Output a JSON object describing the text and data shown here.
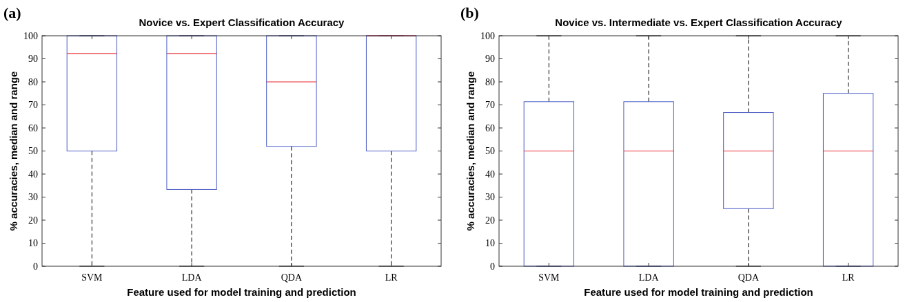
{
  "chart_data": [
    {
      "type": "box",
      "title": "Novice vs. Expert Classification Accuracy",
      "xlabel": "Feature used for model training and prediction",
      "ylabel": "% accuracies, median and range",
      "annotations": [
        "(a)"
      ],
      "categories": [
        "SVM",
        "LDA",
        "QDA",
        "LR"
      ],
      "ylim": [
        0,
        100
      ],
      "yticks": [
        0,
        10,
        20,
        30,
        40,
        50,
        60,
        70,
        80,
        90,
        100
      ],
      "grid": false,
      "series": [
        {
          "color": "#4a5bc4",
          "boxes": [
            {
              "low": 0,
              "q1": 50,
              "median": 92.3,
              "q3": 100,
              "high": 100
            },
            {
              "low": 0,
              "q1": 33.3,
              "median": 92.3,
              "q3": 100,
              "high": 100
            },
            {
              "low": 0,
              "q1": 52,
              "median": 80,
              "q3": 100,
              "high": 100
            },
            {
              "low": 0,
              "q1": 50,
              "median": 100,
              "q3": 100,
              "high": 100
            }
          ]
        }
      ]
    },
    {
      "type": "box",
      "title": "Novice vs. Intermediate vs. Expert Classification Accuracy",
      "xlabel": "Feature used for model training and prediction",
      "ylabel": "% accuracies, median and range",
      "annotations": [
        "(b)"
      ],
      "categories": [
        "SVM",
        "LDA",
        "QDA",
        "LR"
      ],
      "ylim": [
        0,
        100
      ],
      "yticks": [
        0,
        10,
        20,
        30,
        40,
        50,
        60,
        70,
        80,
        90,
        100
      ],
      "grid": false,
      "series": [
        {
          "color": "#4a5bc4",
          "boxes": [
            {
              "low": 0,
              "q1": 0,
              "median": 50,
              "q3": 71.4,
              "high": 100
            },
            {
              "low": 0,
              "q1": 0,
              "median": 50,
              "q3": 71.4,
              "high": 100
            },
            {
              "low": 0,
              "q1": 25,
              "median": 50,
              "q3": 66.7,
              "high": 100
            },
            {
              "low": 0,
              "q1": 0,
              "median": 50,
              "q3": 75,
              "high": 100
            }
          ]
        }
      ]
    }
  ]
}
